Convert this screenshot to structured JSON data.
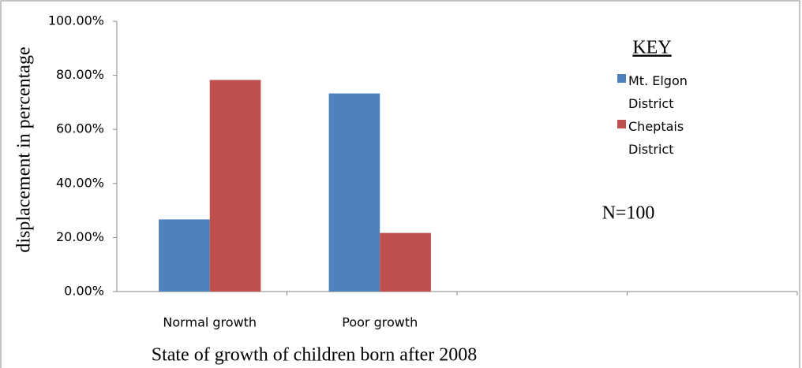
{
  "chart_data": {
    "type": "bar",
    "x_label": "State of growth  of children  born after 2008",
    "y_label": "displacement  in  percentage",
    "categories": [
      "Normal growth",
      "Poor growth",
      null,
      null
    ],
    "series": [
      {
        "name": "Mt. Elgon District",
        "color": "#4f81bd",
        "values": [
          26.7,
          73.3,
          null,
          null
        ]
      },
      {
        "name": "Cheptais District",
        "color": "#c0504d",
        "values": [
          78.3,
          21.7,
          null,
          null
        ]
      }
    ],
    "ylim": [
      0,
      100
    ],
    "yticks": [
      {
        "value": 0,
        "label": "0.00%"
      },
      {
        "value": 20,
        "label": "20.00%"
      },
      {
        "value": 40,
        "label": "40.00%"
      },
      {
        "value": 60,
        "label": "60.00%"
      },
      {
        "value": 80,
        "label": "80.00%"
      },
      {
        "value": 100,
        "label": "100.00%"
      }
    ],
    "grid": false,
    "legend": "right",
    "legend_title": "KEY",
    "annotation": "N=100"
  }
}
